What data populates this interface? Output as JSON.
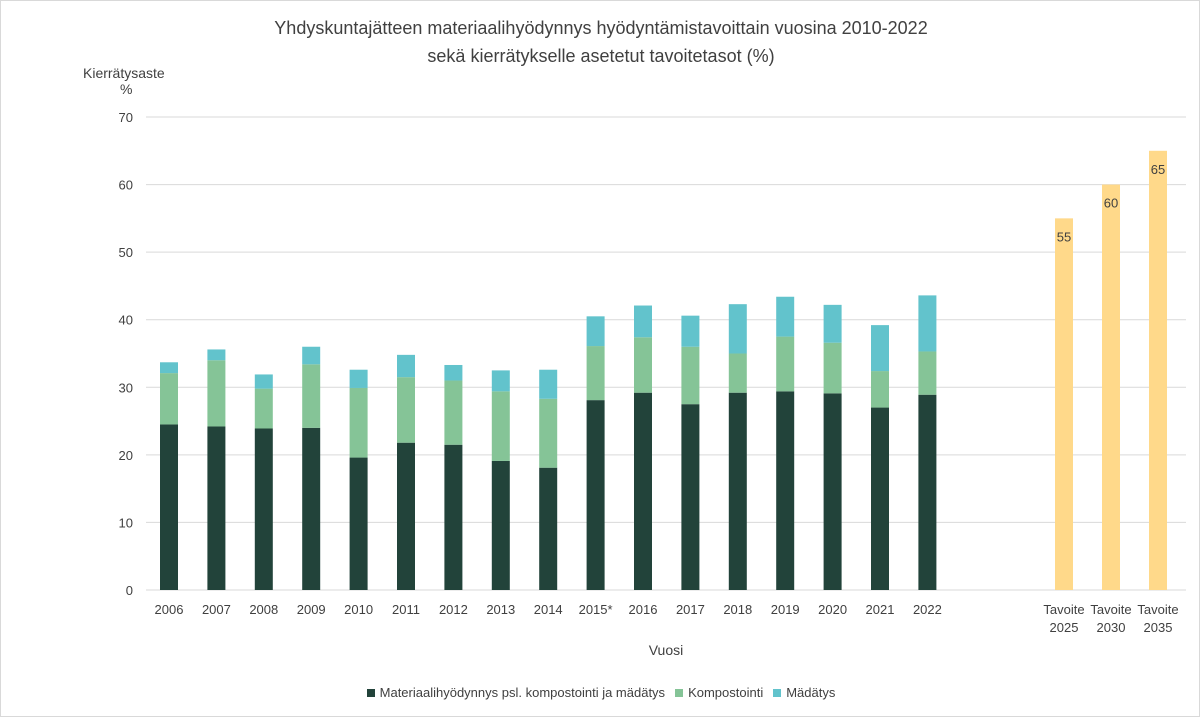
{
  "chart_data": {
    "type": "bar",
    "stacked": true,
    "title": "Yhdyskuntajätteen materiaalihyödynnys hyödyntämistavoittain vuosina 2010-2022",
    "subtitle": "sekä kierrätykselle asetetut tavoitetasot (%)",
    "ylabel": "Kierrätysaste",
    "ylabel_unit": "%",
    "xlabel": "Vuosi",
    "ylim": [
      0,
      70
    ],
    "yticks": [
      0,
      10,
      20,
      30,
      40,
      50,
      60,
      70
    ],
    "grid": true,
    "legend_position": "bottom",
    "categories": [
      "2006",
      "2007",
      "2008",
      "2009",
      "2010",
      "2011",
      "2012",
      "2013",
      "2014",
      "2015*",
      "2016",
      "2017",
      "2018",
      "2019",
      "2020",
      "2021",
      "2022"
    ],
    "series": [
      {
        "name": "Materiaalihyödynnys psl. kompostointi ja mädätys",
        "color": "#22433a",
        "values": [
          24.5,
          24.2,
          23.9,
          24.0,
          19.6,
          21.8,
          21.5,
          19.1,
          18.1,
          28.1,
          29.2,
          27.5,
          29.2,
          29.4,
          29.1,
          27.0,
          28.9
        ]
      },
      {
        "name": "Kompostointi",
        "color": "#85c497",
        "values": [
          7.6,
          9.8,
          5.9,
          9.4,
          10.3,
          9.7,
          9.5,
          10.3,
          10.2,
          8.0,
          8.2,
          8.5,
          5.8,
          8.1,
          7.5,
          5.4,
          6.4
        ]
      },
      {
        "name": "Mädätys",
        "color": "#62c3cc",
        "values": [
          1.6,
          1.6,
          2.1,
          2.6,
          2.7,
          3.3,
          2.3,
          3.1,
          4.3,
          4.4,
          4.7,
          4.6,
          7.3,
          5.9,
          5.6,
          6.8,
          8.3
        ]
      }
    ],
    "targets": {
      "color": "#ffd98a",
      "items": [
        {
          "label_line1": "Tavoite",
          "label_line2": "2025",
          "value": 55,
          "value_label": "55"
        },
        {
          "label_line1": "Tavoite",
          "label_line2": "2030",
          "value": 60,
          "value_label": "60"
        },
        {
          "label_line1": "Tavoite",
          "label_line2": "2035",
          "value": 65,
          "value_label": "65"
        }
      ]
    }
  }
}
